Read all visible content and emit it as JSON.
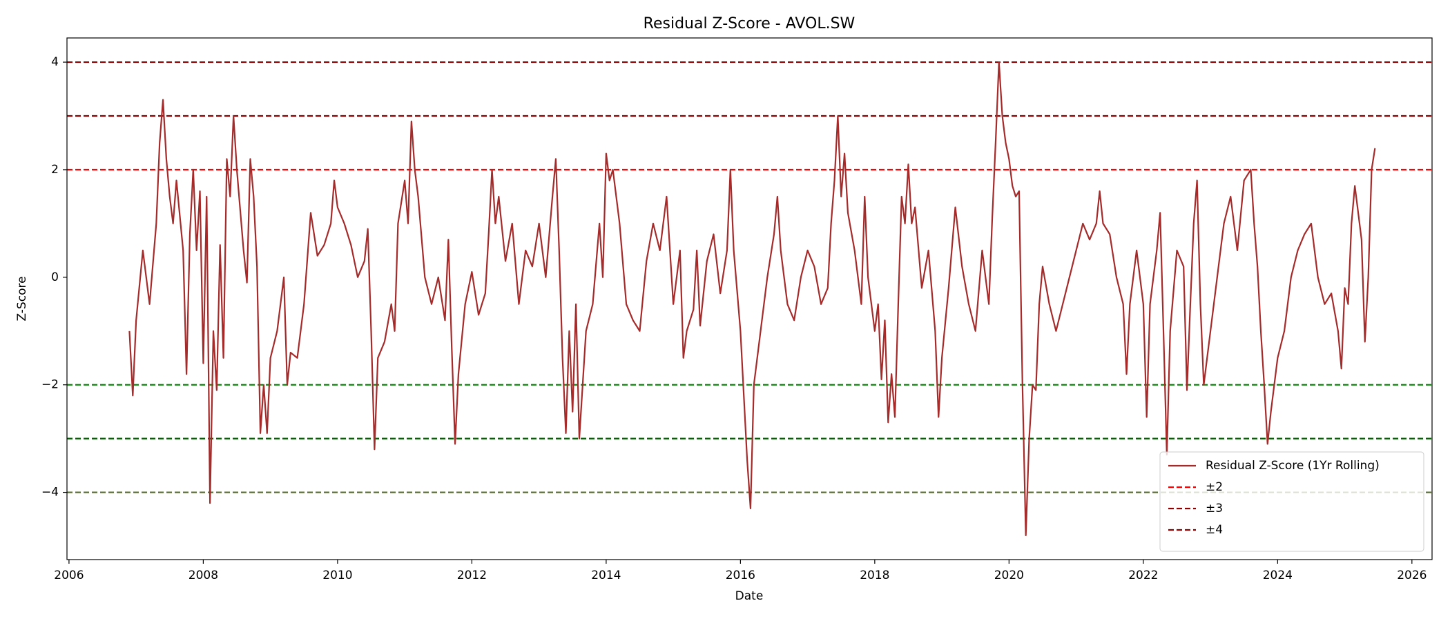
{
  "chart_data": {
    "type": "line",
    "title": "Residual Z-Score - AVOL.SW",
    "xlabel": "Date",
    "ylabel": "Z-Score",
    "xlim": [
      2005.97,
      2026.3
    ],
    "ylim": [
      -5.25,
      4.45
    ],
    "xticks": [
      2006,
      2008,
      2010,
      2012,
      2014,
      2016,
      2018,
      2020,
      2022,
      2024,
      2026
    ],
    "yticks": [
      {
        "value": -4,
        "label": "−4"
      },
      {
        "value": -2,
        "label": "−2"
      },
      0,
      2,
      4
    ],
    "grid": false,
    "legend_loc": "lower right",
    "x": [
      2006.9,
      2006.95,
      2007.0,
      2007.1,
      2007.2,
      2007.3,
      2007.35,
      2007.4,
      2007.45,
      2007.5,
      2007.55,
      2007.6,
      2007.7,
      2007.75,
      2007.8,
      2007.85,
      2007.9,
      2007.95,
      2008.0,
      2008.05,
      2008.1,
      2008.15,
      2008.2,
      2008.25,
      2008.3,
      2008.35,
      2008.4,
      2008.45,
      2008.5,
      2008.6,
      2008.65,
      2008.7,
      2008.75,
      2008.8,
      2008.85,
      2008.9,
      2008.95,
      2009.0,
      2009.1,
      2009.2,
      2009.25,
      2009.3,
      2009.4,
      2009.5,
      2009.6,
      2009.7,
      2009.8,
      2009.9,
      2009.95,
      2010.0,
      2010.1,
      2010.2,
      2010.3,
      2010.4,
      2010.45,
      2010.5,
      2010.55,
      2010.6,
      2010.7,
      2010.8,
      2010.85,
      2010.9,
      2011.0,
      2011.05,
      2011.1,
      2011.15,
      2011.2,
      2011.3,
      2011.4,
      2011.5,
      2011.6,
      2011.65,
      2011.7,
      2011.75,
      2011.8,
      2011.9,
      2012.0,
      2012.1,
      2012.2,
      2012.25,
      2012.3,
      2012.35,
      2012.4,
      2012.5,
      2012.6,
      2012.7,
      2012.8,
      2012.9,
      2013.0,
      2013.1,
      2013.2,
      2013.25,
      2013.3,
      2013.35,
      2013.4,
      2013.45,
      2013.5,
      2013.55,
      2013.6,
      2013.7,
      2013.8,
      2013.9,
      2013.95,
      2014.0,
      2014.05,
      2014.1,
      2014.15,
      2014.2,
      2014.3,
      2014.4,
      2014.5,
      2014.6,
      2014.7,
      2014.8,
      2014.9,
      2015.0,
      2015.1,
      2015.15,
      2015.2,
      2015.3,
      2015.35,
      2015.4,
      2015.5,
      2015.6,
      2015.7,
      2015.8,
      2015.85,
      2015.9,
      2016.0,
      2016.1,
      2016.15,
      2016.2,
      2016.3,
      2016.4,
      2016.5,
      2016.55,
      2016.6,
      2016.7,
      2016.8,
      2016.9,
      2017.0,
      2017.1,
      2017.2,
      2017.3,
      2017.35,
      2017.4,
      2017.45,
      2017.5,
      2017.55,
      2017.6,
      2017.7,
      2017.8,
      2017.85,
      2017.9,
      2018.0,
      2018.05,
      2018.1,
      2018.15,
      2018.2,
      2018.25,
      2018.3,
      2018.35,
      2018.4,
      2018.45,
      2018.5,
      2018.55,
      2018.6,
      2018.7,
      2018.8,
      2018.9,
      2018.95,
      2019.0,
      2019.1,
      2019.2,
      2019.3,
      2019.4,
      2019.5,
      2019.6,
      2019.7,
      2019.75,
      2019.8,
      2019.85,
      2019.9,
      2019.95,
      2020.0,
      2020.05,
      2020.1,
      2020.15,
      2020.2,
      2020.25,
      2020.3,
      2020.35,
      2020.4,
      2020.45,
      2020.5,
      2020.6,
      2020.7,
      2020.8,
      2020.9,
      2021.0,
      2021.1,
      2021.2,
      2021.3,
      2021.35,
      2021.4,
      2021.5,
      2021.6,
      2021.7,
      2021.75,
      2021.8,
      2021.9,
      2022.0,
      2022.05,
      2022.1,
      2022.2,
      2022.25,
      2022.3,
      2022.35,
      2022.4,
      2022.5,
      2022.6,
      2022.65,
      2022.7,
      2022.75,
      2022.8,
      2022.85,
      2022.9,
      2023.0,
      2023.1,
      2023.2,
      2023.3,
      2023.4,
      2023.5,
      2023.6,
      2023.65,
      2023.7,
      2023.75,
      2023.8,
      2023.85,
      2023.9,
      2023.95,
      2024.0,
      2024.1,
      2024.2,
      2024.3,
      2024.4,
      2024.5,
      2024.6,
      2024.7,
      2024.8,
      2024.9,
      2024.95,
      2025.0,
      2025.05,
      2025.1,
      2025.15,
      2025.2,
      2025.25,
      2025.3,
      2025.35,
      2025.4,
      2025.45
    ],
    "series": [
      {
        "name": "Residual Z-Score (1Yr Rolling)",
        "color": "#a52a2a",
        "values": [
          -1.0,
          -2.2,
          -0.8,
          0.5,
          -0.5,
          1.0,
          2.5,
          3.3,
          2.2,
          1.5,
          1.0,
          1.8,
          0.5,
          -1.8,
          0.8,
          2.0,
          0.5,
          1.6,
          -1.6,
          1.5,
          -4.2,
          -1.0,
          -2.1,
          0.6,
          -1.5,
          2.2,
          1.5,
          3.0,
          2.0,
          0.5,
          -0.1,
          2.2,
          1.5,
          0.2,
          -2.9,
          -2.0,
          -2.9,
          -1.5,
          -1.0,
          0.0,
          -2.0,
          -1.4,
          -1.5,
          -0.5,
          1.2,
          0.4,
          0.6,
          1.0,
          1.8,
          1.3,
          1.0,
          0.6,
          0.0,
          0.3,
          0.9,
          -1.0,
          -3.2,
          -1.5,
          -1.2,
          -0.5,
          -1.0,
          1.0,
          1.8,
          1.0,
          2.9,
          2.0,
          1.5,
          0.0,
          -0.5,
          0.0,
          -0.8,
          0.7,
          -1.3,
          -3.1,
          -1.8,
          -0.5,
          0.1,
          -0.7,
          -0.3,
          0.8,
          2.0,
          1.0,
          1.5,
          0.3,
          1.0,
          -0.5,
          0.5,
          0.2,
          1.0,
          0.0,
          1.5,
          2.2,
          0.5,
          -1.5,
          -2.9,
          -1.0,
          -2.5,
          -0.5,
          -3.0,
          -1.0,
          -0.5,
          1.0,
          0.0,
          2.3,
          1.8,
          2.0,
          1.5,
          1.0,
          -0.5,
          -0.8,
          -1.0,
          0.3,
          1.0,
          0.5,
          1.5,
          -0.5,
          0.5,
          -1.5,
          -1.0,
          -0.6,
          0.5,
          -0.9,
          0.3,
          0.8,
          -0.3,
          0.5,
          2.0,
          0.5,
          -1.0,
          -3.4,
          -4.3,
          -2.0,
          -1.0,
          0.0,
          0.8,
          1.5,
          0.5,
          -0.5,
          -0.8,
          0.0,
          0.5,
          0.2,
          -0.5,
          -0.2,
          1.0,
          1.8,
          3.0,
          1.5,
          2.3,
          1.2,
          0.5,
          -0.5,
          1.5,
          0.0,
          -1.0,
          -0.5,
          -1.9,
          -0.8,
          -2.7,
          -1.8,
          -2.6,
          -0.5,
          1.5,
          1.0,
          2.1,
          1.0,
          1.3,
          -0.2,
          0.5,
          -1.0,
          -2.6,
          -1.5,
          -0.2,
          1.3,
          0.2,
          -0.5,
          -1.0,
          0.5,
          -0.5,
          1.1,
          2.5,
          4.0,
          3.0,
          2.5,
          2.2,
          1.7,
          1.5,
          1.6,
          -2.0,
          -4.8,
          -3.0,
          -2.0,
          -2.1,
          -0.5,
          0.2,
          -0.5,
          -1.0,
          -0.5,
          0.0,
          0.5,
          1.0,
          0.7,
          1.0,
          1.6,
          1.0,
          0.8,
          0.0,
          -0.5,
          -1.8,
          -0.5,
          0.5,
          -0.5,
          -2.6,
          -0.5,
          0.5,
          1.2,
          -1.0,
          -3.3,
          -1.0,
          0.5,
          0.2,
          -2.1,
          -0.5,
          1.0,
          1.8,
          -0.5,
          -2.0,
          -1.0,
          0.0,
          1.0,
          1.5,
          0.5,
          1.8,
          2.0,
          1.0,
          0.2,
          -1.0,
          -2.0,
          -3.1,
          -2.5,
          -2.0,
          -1.5,
          -1.0,
          0.0,
          0.5,
          0.8,
          1.0,
          0.0,
          -0.5,
          -0.3,
          -1.0,
          -1.7,
          -0.2,
          -0.5,
          1.0,
          1.7,
          1.2,
          0.7,
          -1.2,
          0.0,
          2.0,
          2.4
        ]
      }
    ],
    "reference_lines": [
      {
        "name": "±2",
        "values": [
          2,
          -2
        ],
        "colors": [
          "#ff0000",
          "#008000"
        ]
      },
      {
        "name": "±3",
        "values": [
          3,
          -3
        ],
        "colors": [
          "#8b0000",
          "#006400"
        ]
      },
      {
        "name": "±4",
        "values": [
          4,
          -4
        ],
        "colors": [
          "#8b0000",
          "#556b2f"
        ]
      }
    ]
  }
}
